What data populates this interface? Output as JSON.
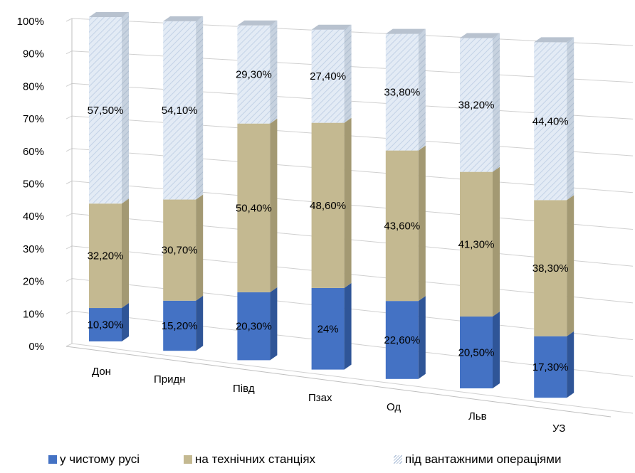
{
  "chart_data": {
    "type": "bar",
    "stacked": true,
    "percent": true,
    "three_d": true,
    "categories": [
      "Дон",
      "Придн",
      "Півд",
      "Пзах",
      "Од",
      "Льв",
      "УЗ"
    ],
    "series": [
      {
        "name": "у чистому русі",
        "values": [
          10.3,
          15.2,
          20.3,
          24,
          22.6,
          20.5,
          17.3
        ],
        "labels": [
          "10,30%",
          "15,20%",
          "20,30%",
          "24%",
          "22,60%",
          "20,50%",
          "17,30%"
        ],
        "color": "#4472c4"
      },
      {
        "name": "на технічних станціях",
        "values": [
          32.2,
          30.7,
          50.4,
          48.6,
          43.6,
          41.3,
          38.3
        ],
        "labels": [
          "32,20%",
          "30,70%",
          "50,40%",
          "48,60%",
          "43,60%",
          "41,30%",
          "38,30%"
        ],
        "color": "#c4b991"
      },
      {
        "name": "під вантажними операціями",
        "values": [
          57.5,
          54.1,
          29.3,
          27.4,
          33.8,
          38.2,
          44.4
        ],
        "labels": [
          "57,50%",
          "54,10%",
          "29,30%",
          "27,40%",
          "33,80%",
          "38,20%",
          "44,40%"
        ],
        "color": "#dbe5f1"
      }
    ],
    "y_ticks": [
      "0%",
      "10%",
      "20%",
      "30%",
      "40%",
      "50%",
      "60%",
      "70%",
      "80%",
      "90%",
      "100%"
    ],
    "ylim": [
      0,
      100
    ],
    "grid": true,
    "legend_position": "bottom",
    "title": "",
    "xlabel": "",
    "ylabel": ""
  }
}
